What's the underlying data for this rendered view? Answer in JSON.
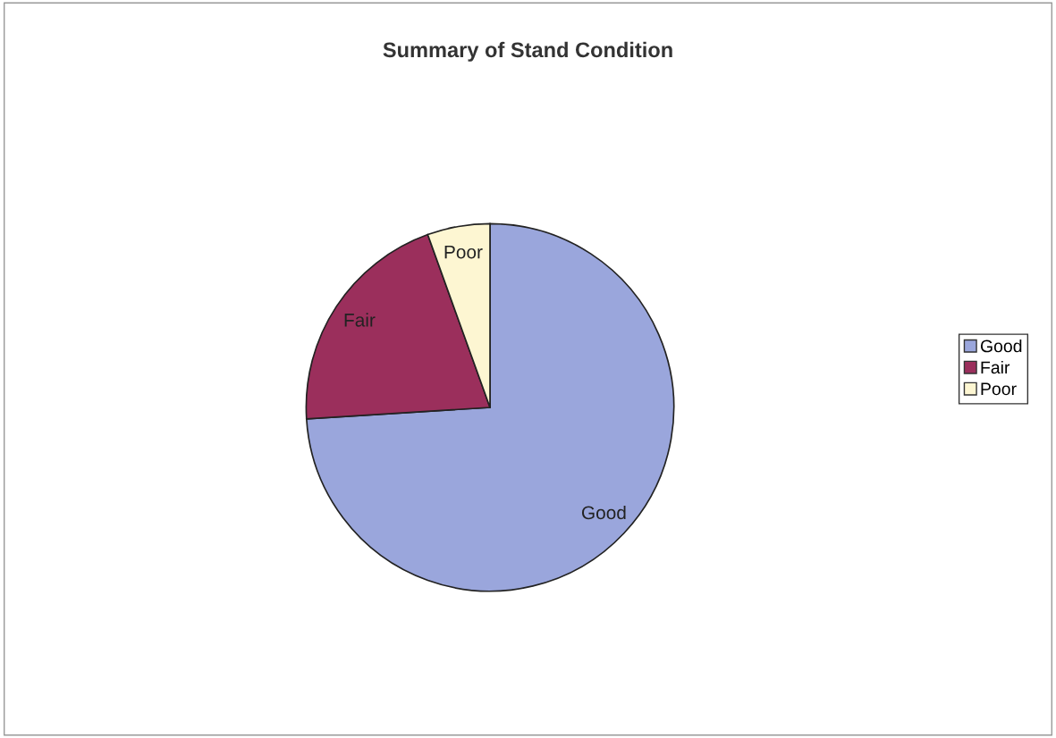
{
  "chart_data": {
    "type": "pie",
    "title": "Summary of Stand Condition",
    "categories": [
      "Good",
      "Fair",
      "Poor"
    ],
    "values": [
      74,
      20.5,
      5.5
    ],
    "colors": [
      "#9aa6dc",
      "#9b2f5c",
      "#fdf6d2"
    ],
    "legend": "right"
  }
}
